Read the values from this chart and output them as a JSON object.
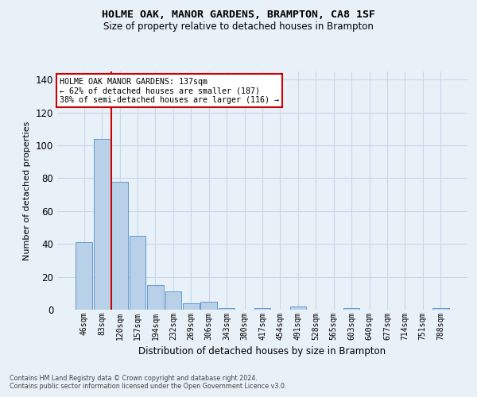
{
  "title": "HOLME OAK, MANOR GARDENS, BRAMPTON, CA8 1SF",
  "subtitle": "Size of property relative to detached houses in Brampton",
  "xlabel": "Distribution of detached houses by size in Brampton",
  "ylabel": "Number of detached properties",
  "bin_labels": [
    "46sqm",
    "83sqm",
    "120sqm",
    "157sqm",
    "194sqm",
    "232sqm",
    "269sqm",
    "306sqm",
    "343sqm",
    "380sqm",
    "417sqm",
    "454sqm",
    "491sqm",
    "528sqm",
    "565sqm",
    "603sqm",
    "640sqm",
    "677sqm",
    "714sqm",
    "751sqm",
    "788sqm"
  ],
  "bar_heights": [
    41,
    104,
    78,
    45,
    15,
    11,
    4,
    5,
    1,
    0,
    1,
    0,
    2,
    0,
    0,
    1,
    0,
    0,
    0,
    0,
    1
  ],
  "bar_color": "#b8d0e8",
  "bar_edge_color": "#6699cc",
  "red_line_index": 2,
  "red_line_color": "#cc0000",
  "annotation_text": "HOLME OAK MANOR GARDENS: 137sqm\n← 62% of detached houses are smaller (187)\n38% of semi-detached houses are larger (116) →",
  "annotation_box_color": "#ffffff",
  "annotation_box_edge": "#cc0000",
  "yticks": [
    0,
    20,
    40,
    60,
    80,
    100,
    120,
    140
  ],
  "ylim": [
    0,
    145
  ],
  "grid_color": "#c8d8e8",
  "background_color": "#e8f0f8",
  "footer_line1": "Contains HM Land Registry data © Crown copyright and database right 2024.",
  "footer_line2": "Contains public sector information licensed under the Open Government Licence v3.0."
}
